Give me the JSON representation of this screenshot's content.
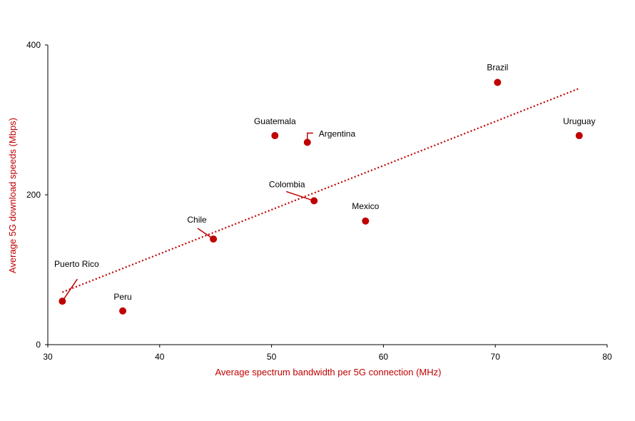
{
  "chart_data": {
    "type": "scatter",
    "title": "",
    "xlabel": "Average spectrum bandwidth per 5G connection (MHz)",
    "ylabel": "Average 5G download speeds (Mbps)",
    "xlim": [
      30,
      80
    ],
    "ylim": [
      0,
      400
    ],
    "xticks": [
      "30",
      "40",
      "50",
      "60",
      "70",
      "80"
    ],
    "yticks": [
      "0",
      "200",
      "400"
    ],
    "grid": false,
    "legend": "none",
    "points": [
      {
        "label": "Puerto Rico",
        "x": 31.3,
        "y": 58
      },
      {
        "label": "Peru",
        "x": 36.7,
        "y": 45
      },
      {
        "label": "Chile",
        "x": 44.8,
        "y": 141
      },
      {
        "label": "Guatemala",
        "x": 50.3,
        "y": 279
      },
      {
        "label": "Argentina",
        "x": 53.2,
        "y": 270
      },
      {
        "label": "Colombia",
        "x": 53.8,
        "y": 192
      },
      {
        "label": "Mexico",
        "x": 58.4,
        "y": 165
      },
      {
        "label": "Brazil",
        "x": 70.2,
        "y": 350
      },
      {
        "label": "Uruguay",
        "x": 77.5,
        "y": 279
      }
    ],
    "trendline": {
      "x": [
        31.3,
        77.5
      ],
      "y": [
        70,
        342
      ]
    },
    "colors": {
      "points": "#c00000",
      "trendline": "#c00000",
      "axis_title": "#c00000",
      "axis": "#000000"
    }
  }
}
